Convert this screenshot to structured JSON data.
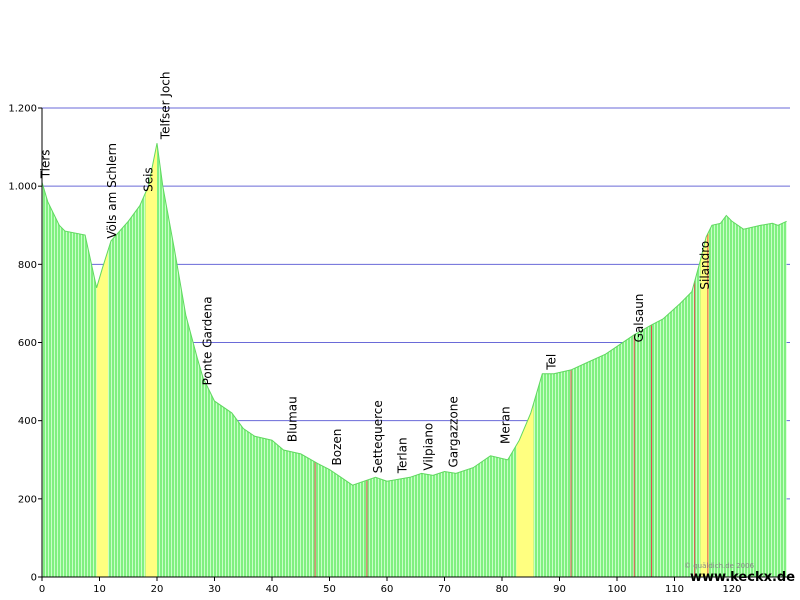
{
  "chart_data": {
    "type": "area",
    "title": "",
    "xlabel": "",
    "ylabel": "",
    "xlim": [
      0,
      130
    ],
    "ylim": [
      0,
      1200
    ],
    "x_ticks": [
      0,
      10,
      20,
      30,
      40,
      50,
      60,
      70,
      80,
      90,
      100,
      110,
      120
    ],
    "y_ticks": [
      0,
      200,
      400,
      600,
      800,
      1000,
      1200
    ],
    "y_tick_labels": [
      "0",
      "200",
      "400",
      "600",
      "800",
      "1.000",
      "1.200"
    ],
    "grid": true,
    "series": [
      {
        "x": [
          0,
          1,
          3,
          4,
          7.5,
          9.5,
          10.5,
          12,
          15,
          17,
          18.5,
          20,
          21,
          23,
          25,
          27,
          28,
          30,
          33,
          35,
          37,
          40,
          42,
          45,
          48,
          50,
          52,
          54,
          56,
          58,
          60,
          62,
          64,
          66,
          68,
          70,
          72,
          75,
          78,
          81,
          83,
          85,
          87,
          89,
          92,
          95,
          98,
          100,
          103,
          106,
          108,
          111,
          113,
          114.5,
          115.5,
          116.5,
          118,
          119,
          120,
          122,
          125,
          127,
          128,
          129.5
        ],
        "y": [
          1010,
          960,
          900,
          885,
          875,
          740,
          790,
          860,
          910,
          950,
          1000,
          1110,
          1000,
          840,
          670,
          560,
          510,
          450,
          420,
          380,
          360,
          350,
          325,
          315,
          290,
          275,
          255,
          235,
          245,
          255,
          245,
          250,
          255,
          265,
          260,
          270,
          265,
          280,
          310,
          300,
          350,
          420,
          520,
          520,
          530,
          550,
          570,
          590,
          620,
          645,
          660,
          700,
          730,
          810,
          870,
          900,
          905,
          925,
          910,
          890,
          900,
          905,
          900,
          910
        ]
      }
    ],
    "highlight_bands": [
      {
        "x0": 9.5,
        "x1": 11.5,
        "color": "#ffff80"
      },
      {
        "x0": 18,
        "x1": 20,
        "color": "#ffff80"
      },
      {
        "x0": 82.5,
        "x1": 85.5,
        "color": "#ffff80"
      },
      {
        "x0": 114.5,
        "x1": 116,
        "color": "#ffff80"
      }
    ],
    "red_lines": [
      47.5,
      56.5,
      92,
      103,
      106,
      113.5,
      115.8
    ],
    "places": [
      {
        "name": "Tiers",
        "x": 0.6,
        "y": 1010
      },
      {
        "name": "Völs am Schlern",
        "x": 12.2,
        "y": 855
      },
      {
        "name": "Seis",
        "x": 18.5,
        "y": 975
      },
      {
        "name": "Telfser Joch",
        "x": 21.5,
        "y": 1110
      },
      {
        "name": "Ponte Gardena",
        "x": 28.8,
        "y": 480
      },
      {
        "name": "Blumau",
        "x": 43.6,
        "y": 335
      },
      {
        "name": "Bozen",
        "x": 51.3,
        "y": 275
      },
      {
        "name": "Settequerce",
        "x": 58.4,
        "y": 255
      },
      {
        "name": "Terlan",
        "x": 62.7,
        "y": 255
      },
      {
        "name": "Vilpiano",
        "x": 67.2,
        "y": 262
      },
      {
        "name": "Gargazzone",
        "x": 71.6,
        "y": 270
      },
      {
        "name": "Meran",
        "x": 80.6,
        "y": 330
      },
      {
        "name": "Tel",
        "x": 88.6,
        "y": 520
      },
      {
        "name": "Galsaun",
        "x": 103.8,
        "y": 590
      },
      {
        "name": "Silandro",
        "x": 115.3,
        "y": 725
      }
    ],
    "fill_color": "#80f080",
    "stripe_color": "#e8ffe8"
  },
  "footer": {
    "copyright": "© quäldich.de 2006",
    "site": "www.keckx.de"
  }
}
